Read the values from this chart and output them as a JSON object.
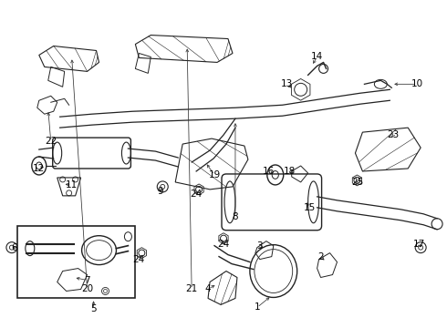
{
  "bg_color": "#ffffff",
  "line_color": "#222222",
  "label_color": "#000000",
  "figsize": [
    4.9,
    3.6
  ],
  "dpi": 100,
  "labels": [
    [
      "20",
      95,
      318
    ],
    [
      "21",
      210,
      318
    ],
    [
      "24",
      152,
      285
    ],
    [
      "24",
      245,
      268
    ],
    [
      "24",
      215,
      213
    ],
    [
      "8",
      258,
      238
    ],
    [
      "10",
      458,
      92
    ],
    [
      "13",
      315,
      92
    ],
    [
      "14",
      348,
      62
    ],
    [
      "22",
      55,
      155
    ],
    [
      "12",
      42,
      185
    ],
    [
      "11",
      78,
      203
    ],
    [
      "9",
      175,
      210
    ],
    [
      "19",
      235,
      192
    ],
    [
      "16",
      295,
      188
    ],
    [
      "18",
      318,
      188
    ],
    [
      "15",
      340,
      228
    ],
    [
      "23",
      432,
      148
    ],
    [
      "25",
      392,
      200
    ],
    [
      "17",
      460,
      268
    ],
    [
      "3",
      285,
      270
    ],
    [
      "2",
      352,
      282
    ],
    [
      "4",
      228,
      318
    ],
    [
      "1",
      282,
      338
    ],
    [
      "5",
      102,
      340
    ],
    [
      "6",
      15,
      272
    ],
    [
      "7",
      95,
      308
    ]
  ]
}
